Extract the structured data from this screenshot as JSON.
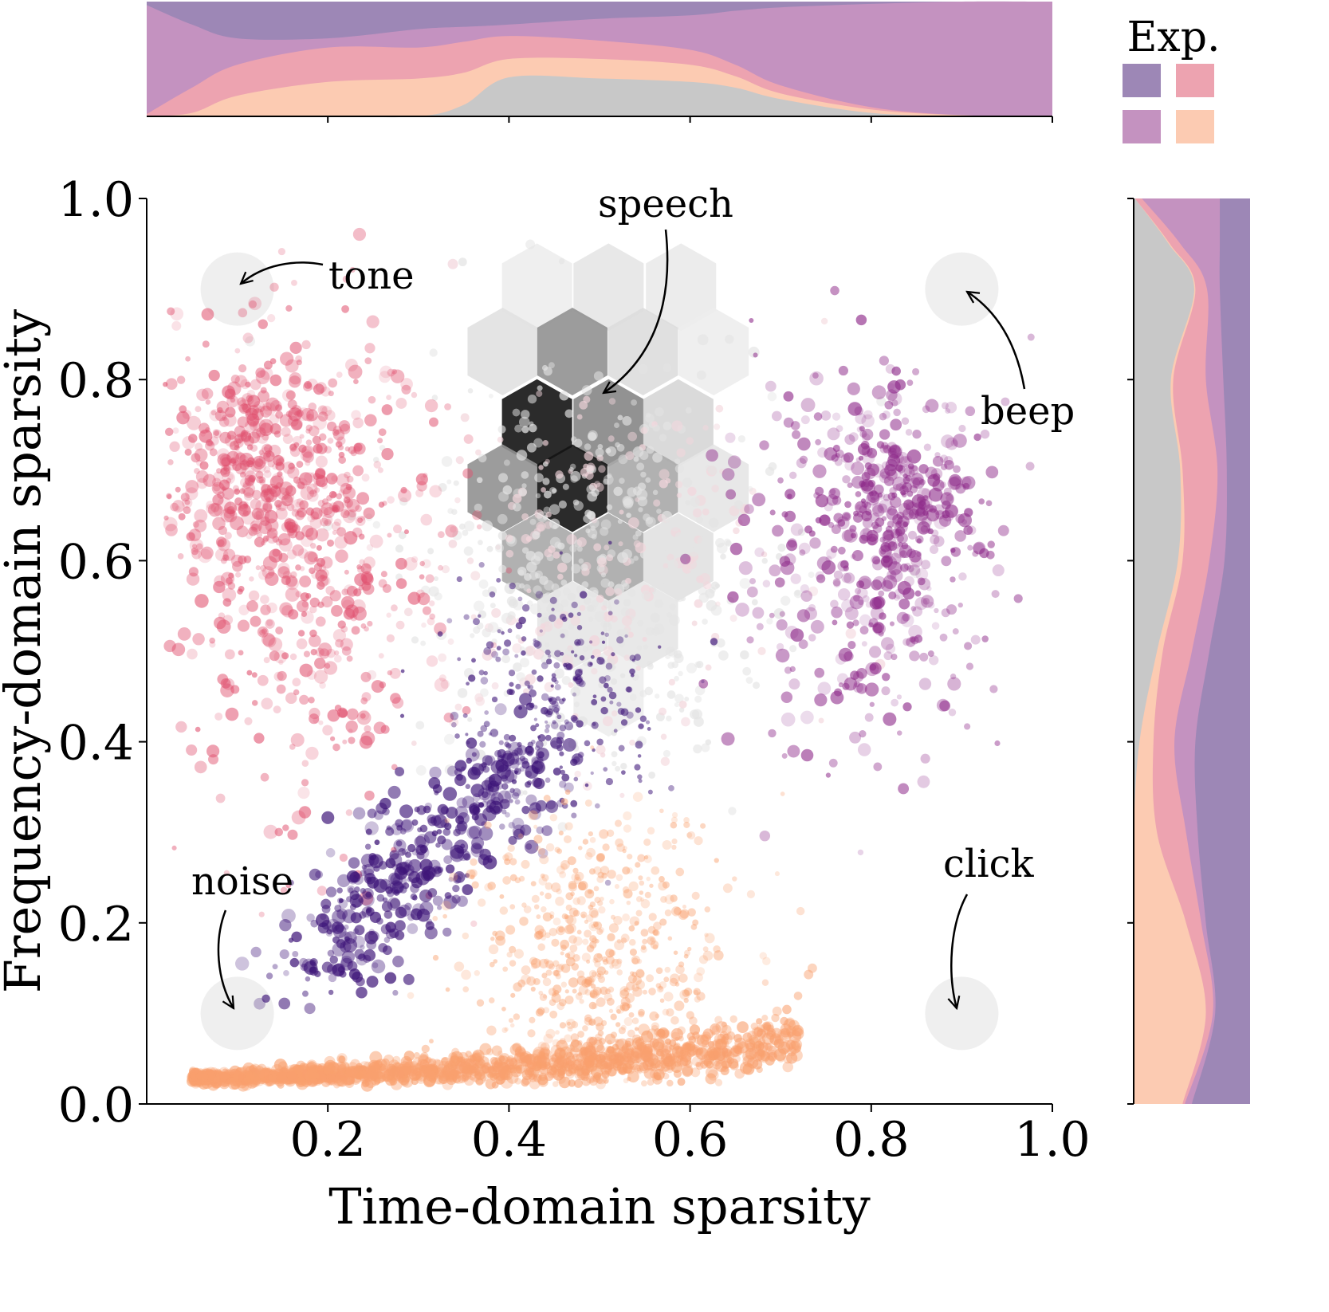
{
  "chart_data": {
    "type": "scatter",
    "xlabel": "Time-domain sparsity",
    "ylabel": "Frequency-domain sparsity",
    "xlim": [
      0,
      1
    ],
    "ylim": [
      0,
      1
    ],
    "x_ticks": [
      "0.2",
      "0.4",
      "0.6",
      "0.8",
      "1.0"
    ],
    "y_ticks": [
      "0.0",
      "0.2",
      "0.4",
      "0.6",
      "0.8",
      "1.0"
    ],
    "grid": false,
    "legend": {
      "title": "Exp.",
      "placement": "top-right",
      "swatches": [
        "#9d87b6",
        "#eda3b0",
        "#c492c0",
        "#fccbb2"
      ]
    },
    "annotations": [
      {
        "text": "tone",
        "x": 0.1,
        "y": 0.9
      },
      {
        "text": "speech",
        "x": 0.5,
        "y": 0.78
      },
      {
        "text": "beep",
        "x": 0.9,
        "y": 0.9
      },
      {
        "text": "noise",
        "x": 0.1,
        "y": 0.1
      },
      {
        "text": "click",
        "x": 0.9,
        "y": 0.1
      }
    ],
    "point_clouds": [
      {
        "color": "#e0506e",
        "center": [
          0.17,
          0.6
        ],
        "spread": [
          0.08,
          0.13
        ]
      },
      {
        "color": "#8e2a8a",
        "center": [
          0.8,
          0.6
        ],
        "spread": [
          0.07,
          0.11
        ]
      },
      {
        "color": "#3d1478",
        "from": [
          0.17,
          0.15
        ],
        "to": [
          0.44,
          0.4
        ]
      },
      {
        "color": "#f9a06e",
        "baseline_from": [
          0.05,
          0.03
        ],
        "baseline_to": [
          0.72,
          0.07
        ],
        "cloud_center": [
          0.5,
          0.15
        ],
        "cloud_spread": [
          0.07,
          0.09
        ]
      },
      {
        "color": "#e4e4e4",
        "center": [
          0.5,
          0.6
        ],
        "spread": [
          0.1,
          0.11
        ]
      }
    ],
    "hexbin": [
      {
        "x": 0.431,
        "y": 0.902,
        "density": 0.05
      },
      {
        "x": 0.51,
        "y": 0.902,
        "density": 0.08
      },
      {
        "x": 0.59,
        "y": 0.902,
        "density": 0.06
      },
      {
        "x": 0.393,
        "y": 0.831,
        "density": 0.1
      },
      {
        "x": 0.47,
        "y": 0.831,
        "density": 0.45
      },
      {
        "x": 0.548,
        "y": 0.831,
        "density": 0.12
      },
      {
        "x": 0.626,
        "y": 0.831,
        "density": 0.05
      },
      {
        "x": 0.431,
        "y": 0.752,
        "density": 1.0
      },
      {
        "x": 0.51,
        "y": 0.752,
        "density": 0.5
      },
      {
        "x": 0.587,
        "y": 0.752,
        "density": 0.15
      },
      {
        "x": 0.393,
        "y": 0.68,
        "density": 0.45
      },
      {
        "x": 0.47,
        "y": 0.68,
        "density": 1.0
      },
      {
        "x": 0.548,
        "y": 0.68,
        "density": 0.35
      },
      {
        "x": 0.626,
        "y": 0.68,
        "density": 0.08
      },
      {
        "x": 0.431,
        "y": 0.604,
        "density": 0.35
      },
      {
        "x": 0.51,
        "y": 0.604,
        "density": 0.35
      },
      {
        "x": 0.587,
        "y": 0.604,
        "density": 0.1
      },
      {
        "x": 0.47,
        "y": 0.529,
        "density": 0.08
      },
      {
        "x": 0.548,
        "y": 0.529,
        "density": 0.08
      },
      {
        "x": 0.51,
        "y": 0.454,
        "density": 0.05
      }
    ],
    "marginal_top": {
      "x": [
        0,
        0.05,
        0.1,
        0.2,
        0.3,
        0.35,
        0.4,
        0.5,
        0.6,
        0.65,
        0.7,
        0.8,
        0.9,
        1.0
      ],
      "layer_colors": [
        "#c8c8c8",
        "#fccbb2",
        "#eda3b0",
        "#c492c0",
        "#9d87b6"
      ],
      "cumulative_fraction": [
        [
          0,
          0,
          0,
          0,
          0,
          0.1,
          0.34,
          0.33,
          0.3,
          0.25,
          0.15,
          0.03,
          0,
          0
        ],
        [
          0,
          0.03,
          0.18,
          0.3,
          0.33,
          0.38,
          0.5,
          0.5,
          0.45,
          0.35,
          0.2,
          0.06,
          0.01,
          0
        ],
        [
          0.02,
          0.25,
          0.45,
          0.6,
          0.6,
          0.65,
          0.7,
          0.66,
          0.58,
          0.45,
          0.27,
          0.08,
          0.01,
          0
        ],
        [
          0.97,
          0.8,
          0.68,
          0.68,
          0.76,
          0.78,
          0.8,
          0.85,
          0.88,
          0.92,
          0.95,
          0.98,
          1.0,
          1.0
        ],
        [
          1,
          1,
          1,
          1,
          1,
          1,
          1,
          1,
          1,
          1,
          1,
          1,
          1,
          1
        ]
      ]
    },
    "marginal_right": {
      "y": [
        1.0,
        0.95,
        0.9,
        0.8,
        0.7,
        0.6,
        0.5,
        0.4,
        0.3,
        0.2,
        0.1,
        0.0
      ],
      "layer_colors": [
        "#c8c8c8",
        "#fccbb2",
        "#eda3b0",
        "#c492c0",
        "#9d87b6"
      ],
      "cumulative_fraction": [
        [
          0.01,
          0.3,
          0.52,
          0.32,
          0.4,
          0.38,
          0.2,
          0.05,
          0,
          0,
          0,
          0
        ],
        [
          0.01,
          0.31,
          0.53,
          0.34,
          0.42,
          0.42,
          0.25,
          0.17,
          0.2,
          0.45,
          0.62,
          0.42
        ],
        [
          0.07,
          0.4,
          0.63,
          0.62,
          0.72,
          0.65,
          0.5,
          0.35,
          0.45,
          0.58,
          0.68,
          0.44
        ],
        [
          0.74,
          0.74,
          0.74,
          0.77,
          0.8,
          0.78,
          0.65,
          0.53,
          0.55,
          0.62,
          0.7,
          0.5
        ],
        [
          1,
          1,
          1,
          1,
          1,
          1,
          1,
          1,
          1,
          1,
          1,
          1
        ]
      ]
    }
  }
}
